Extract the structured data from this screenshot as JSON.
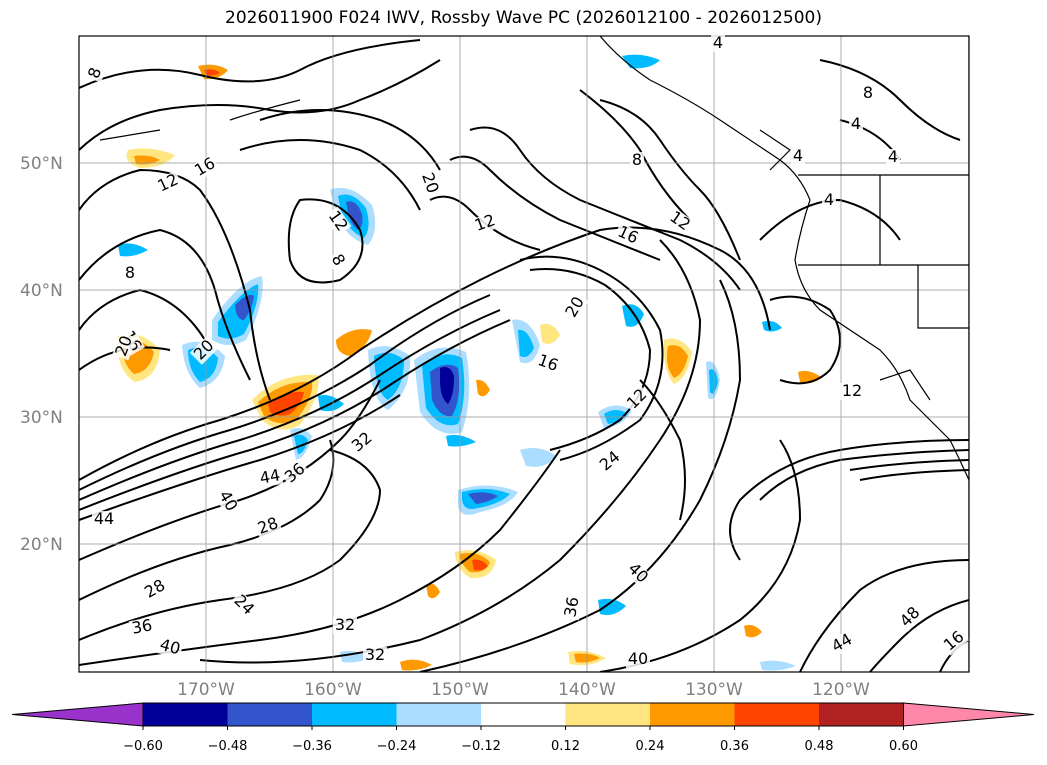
{
  "title": "2026011900 F024 IWV, Rossby Wave PC (2026012100 - 2026012500)",
  "lat_labels": [
    "50°N",
    "40°N",
    "30°N",
    "20°N"
  ],
  "lon_labels": [
    "170°W",
    "160°W",
    "150°W",
    "140°W",
    "130°W",
    "120°W"
  ],
  "colorbar": {
    "ticks": [
      "−0.60",
      "−0.48",
      "−0.36",
      "−0.24",
      "−0.12",
      "0.12",
      "0.24",
      "0.36",
      "0.48",
      "0.60"
    ],
    "colors": [
      "#9933cc",
      "#000099",
      "#3355cc",
      "#00bbff",
      "#aaddff",
      "#ffffff",
      "#ffe680",
      "#ff9900",
      "#ff4400",
      "#b22222",
      "#ff88aa"
    ]
  },
  "contour_labels": [
    "8",
    "12",
    "16",
    "8",
    "12",
    "20",
    "12",
    "16",
    "20",
    "16",
    "12",
    "4",
    "8",
    "4",
    "4",
    "4",
    "4",
    "8",
    "12",
    "8",
    "16",
    "20",
    "12",
    "24",
    "32",
    "36",
    "28",
    "44",
    "40",
    "44",
    "28",
    "24",
    "36",
    "32",
    "32",
    "40",
    "40",
    "36",
    "40",
    "44",
    "48",
    "16",
    "20"
  ],
  "chart_data": {
    "type": "map",
    "variable": "IWV",
    "overlay": "Rossby Wave PC",
    "init": "2026011900",
    "forecast_hour": "F024",
    "period": "2026012100 - 2026012500",
    "lat_range": [
      "10°N",
      "60°N"
    ],
    "lon_range": [
      "180°W",
      "110°W"
    ],
    "grid": true,
    "colorbar_levels": [
      -0.6,
      -0.48,
      -0.36,
      -0.24,
      -0.12,
      0.12,
      0.24,
      0.36,
      0.48,
      0.6
    ]
  }
}
